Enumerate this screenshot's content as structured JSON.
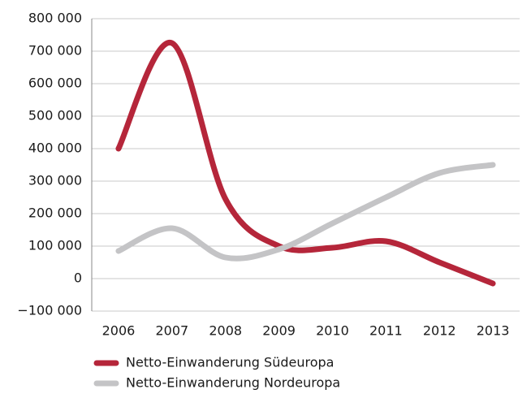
{
  "chart_data": {
    "type": "line",
    "categories": [
      "2006",
      "2007",
      "2008",
      "2009",
      "2010",
      "2011",
      "2012",
      "2013"
    ],
    "series": [
      {
        "name": "Netto-Einwanderung Südeuropa",
        "color": "#b5263a",
        "values": [
          400000,
          725000,
          245000,
          100000,
          95000,
          115000,
          50000,
          -15000
        ]
      },
      {
        "name": "Netto-Einwanderung Nordeuropa",
        "color": "#c4c4c6",
        "values": [
          85000,
          155000,
          65000,
          90000,
          170000,
          250000,
          325000,
          350000
        ]
      }
    ],
    "ylim": [
      -100000,
      800000
    ],
    "yticks": [
      {
        "value": -100000,
        "label": "−100 000"
      },
      {
        "value": 0,
        "label": "0"
      },
      {
        "value": 100000,
        "label": "100 000"
      },
      {
        "value": 200000,
        "label": "200 000"
      },
      {
        "value": 300000,
        "label": "300 000"
      },
      {
        "value": 400000,
        "label": "400 000"
      },
      {
        "value": 500000,
        "label": "500 000"
      },
      {
        "value": 600000,
        "label": "600 000"
      },
      {
        "value": 700000,
        "label": "700 000"
      },
      {
        "value": 800000,
        "label": "800 000"
      }
    ],
    "grid": true,
    "smooth": true,
    "legend": "bottom"
  }
}
